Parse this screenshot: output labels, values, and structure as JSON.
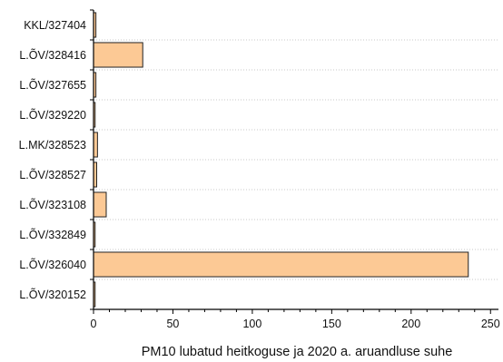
{
  "chart_data": {
    "type": "bar",
    "orientation": "horizontal",
    "categories": [
      "KKL/327404",
      "L.ÕV/328416",
      "L.ÕV/327655",
      "L.ÕV/329220",
      "L.MK/328523",
      "L.ÕV/328527",
      "L.ÕV/323108",
      "L.ÕV/332849",
      "L.ÕV/326040",
      "L.ÕV/320152"
    ],
    "values": [
      1.5,
      31,
      1.5,
      1,
      2.5,
      2,
      8,
      1,
      236,
      1
    ],
    "title": "",
    "xlabel": "PM10 lubatud heitkoguse ja 2020 a. aruandluse suhe",
    "ylabel": "",
    "xlim": [
      0,
      255
    ],
    "xticks": [
      0,
      50,
      100,
      150,
      200,
      250
    ],
    "grid": "horizontal dotted",
    "colors": {
      "bar_fill": "#fcc995",
      "bar_stroke": "#222222",
      "axis": "#000000",
      "grid": "#c8c8c8"
    }
  }
}
